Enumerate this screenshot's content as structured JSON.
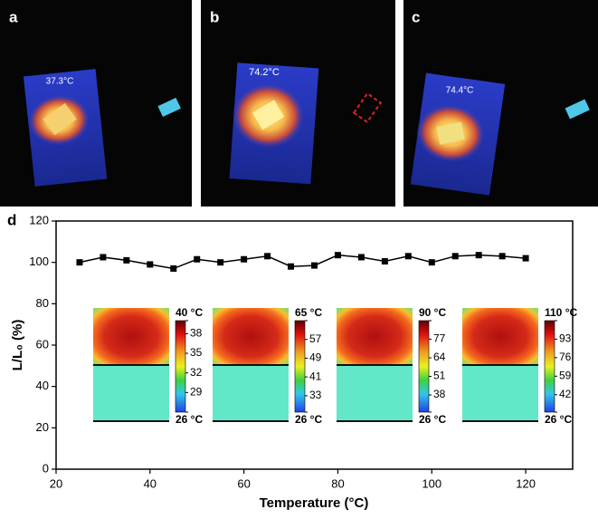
{
  "panels": [
    {
      "label": "a",
      "reading": "37.3°C"
    },
    {
      "label": "b",
      "reading": "74.2°C"
    },
    {
      "label": "c",
      "reading": "74.4°C"
    }
  ],
  "chart_data": {
    "type": "line",
    "label": "d",
    "xlabel": "Temperature (°C)",
    "ylabel": "L/L₀ (%)",
    "x": [
      25,
      30,
      35,
      40,
      45,
      50,
      55,
      60,
      65,
      70,
      75,
      80,
      85,
      90,
      95,
      100,
      105,
      110,
      115,
      120
    ],
    "values": [
      100,
      102.5,
      101,
      99,
      97,
      101.5,
      100,
      101.5,
      103,
      98,
      98.5,
      103.5,
      102.5,
      100.5,
      103,
      100,
      103,
      103.5,
      103,
      102
    ],
    "color": "#000000",
    "xlim": [
      20,
      130
    ],
    "ylim": [
      0,
      120
    ],
    "xticks": [
      20,
      40,
      60,
      80,
      100,
      120
    ],
    "yticks": [
      0,
      20,
      40,
      60,
      80,
      100,
      120
    ],
    "insets": [
      {
        "max": {
          "value": 40,
          "label": "40 °C"
        },
        "ticks": [
          38,
          35,
          32,
          29
        ],
        "min": {
          "value": 26,
          "label": "26 °C"
        }
      },
      {
        "max": {
          "value": 65,
          "label": "65 °C"
        },
        "ticks": [
          57,
          49,
          41,
          33
        ],
        "min": {
          "value": 26,
          "label": "26 °C"
        }
      },
      {
        "max": {
          "value": 90,
          "label": "90 °C"
        },
        "ticks": [
          77,
          64,
          51,
          38
        ],
        "min": {
          "value": 26,
          "label": "26 °C"
        }
      },
      {
        "max": {
          "value": 110,
          "label": "110 °C"
        },
        "ticks": [
          93,
          76,
          59,
          42
        ],
        "min": {
          "value": 26,
          "label": "26 °C"
        }
      }
    ]
  }
}
